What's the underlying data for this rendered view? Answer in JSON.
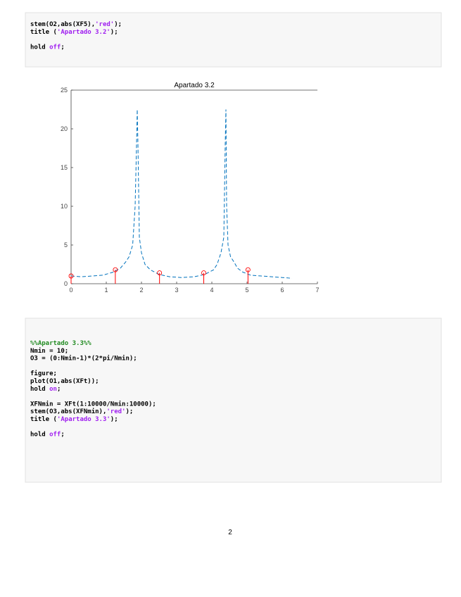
{
  "code_blocks": [
    {
      "paragraphs": [
        [
          [
            {
              "t": "stem(O2,abs(XF5),",
              "k": "code"
            },
            {
              "t": "'red'",
              "k": "string"
            },
            {
              "t": ");",
              "k": "code"
            }
          ],
          [
            {
              "t": "title (",
              "k": "code"
            },
            {
              "t": "'Apartado 3.2'",
              "k": "string"
            },
            {
              "t": ");",
              "k": "code"
            }
          ]
        ],
        [
          [
            {
              "t": "hold ",
              "k": "code"
            },
            {
              "t": "off",
              "k": "string"
            },
            {
              "t": ";",
              "k": "code"
            }
          ]
        ]
      ]
    },
    {
      "paragraphs": [
        [
          [
            {
              "t": "%%Apartado 3.3%%",
              "k": "comment"
            }
          ],
          [
            {
              "t": "Nmin = 10;",
              "k": "code"
            }
          ],
          [
            {
              "t": "O3 = (0:Nmin-1)*(2*pi/Nmin);",
              "k": "code"
            }
          ]
        ],
        [
          [
            {
              "t": "figure;",
              "k": "code"
            }
          ],
          [
            {
              "t": "plot(O1,abs(XFt));",
              "k": "code"
            }
          ],
          [
            {
              "t": "hold ",
              "k": "code"
            },
            {
              "t": "on",
              "k": "string"
            },
            {
              "t": ";",
              "k": "code"
            }
          ]
        ],
        [
          [
            {
              "t": "XFNmin = XFt(1:10000/Nmin:10000);",
              "k": "code"
            }
          ],
          [
            {
              "t": "stem(O3,abs(XFNmin),",
              "k": "code"
            },
            {
              "t": "'red'",
              "k": "string"
            },
            {
              "t": ");",
              "k": "code"
            }
          ],
          [
            {
              "t": "title (",
              "k": "code"
            },
            {
              "t": "'Apartado 3.3'",
              "k": "string"
            },
            {
              "t": ");",
              "k": "code"
            }
          ]
        ],
        [
          [
            {
              "t": "hold ",
              "k": "code"
            },
            {
              "t": "off",
              "k": "string"
            },
            {
              "t": ";",
              "k": "code"
            }
          ]
        ]
      ]
    }
  ],
  "chart_data": {
    "type": "line",
    "title": "Apartado 3.2",
    "xlim": [
      0,
      7
    ],
    "xticks": [
      0,
      1,
      2,
      3,
      4,
      5,
      6,
      7
    ],
    "ylim": [
      0,
      25
    ],
    "yticks": [
      0,
      5,
      10,
      15,
      20,
      25
    ],
    "series": [
      {
        "color": "#0072bd",
        "x": [
          0,
          0.3,
          0.6,
          0.9,
          1.2,
          1.4,
          1.55,
          1.65,
          1.75,
          1.82,
          1.86,
          1.88,
          1.9,
          1.94,
          2.0,
          2.1,
          2.25,
          2.5,
          2.8,
          3.14,
          3.5,
          3.8,
          4.05,
          4.15,
          4.26,
          4.34,
          4.38,
          4.4,
          4.42,
          4.46,
          4.53,
          4.63,
          4.73,
          4.88,
          5.1,
          5.4,
          5.7,
          6.0,
          6.28
        ],
        "values": [
          1.0,
          0.9,
          1.0,
          1.1,
          1.5,
          2.0,
          2.8,
          3.5,
          5.0,
          10,
          18,
          22.5,
          18,
          6,
          4,
          2.5,
          1.8,
          1.2,
          0.9,
          0.8,
          0.9,
          1.2,
          1.8,
          2.5,
          4,
          6,
          18,
          22.5,
          10,
          5,
          3.5,
          2.8,
          2,
          1.5,
          1.1,
          1.0,
          0.9,
          0.8,
          0.7
        ]
      },
      {
        "color": "#ff0000",
        "style": "stem",
        "x": [
          0,
          1.257,
          2.513,
          3.77,
          5.027
        ],
        "values": [
          1.0,
          1.8,
          1.4,
          1.4,
          1.8
        ]
      }
    ]
  },
  "page_number": "2"
}
